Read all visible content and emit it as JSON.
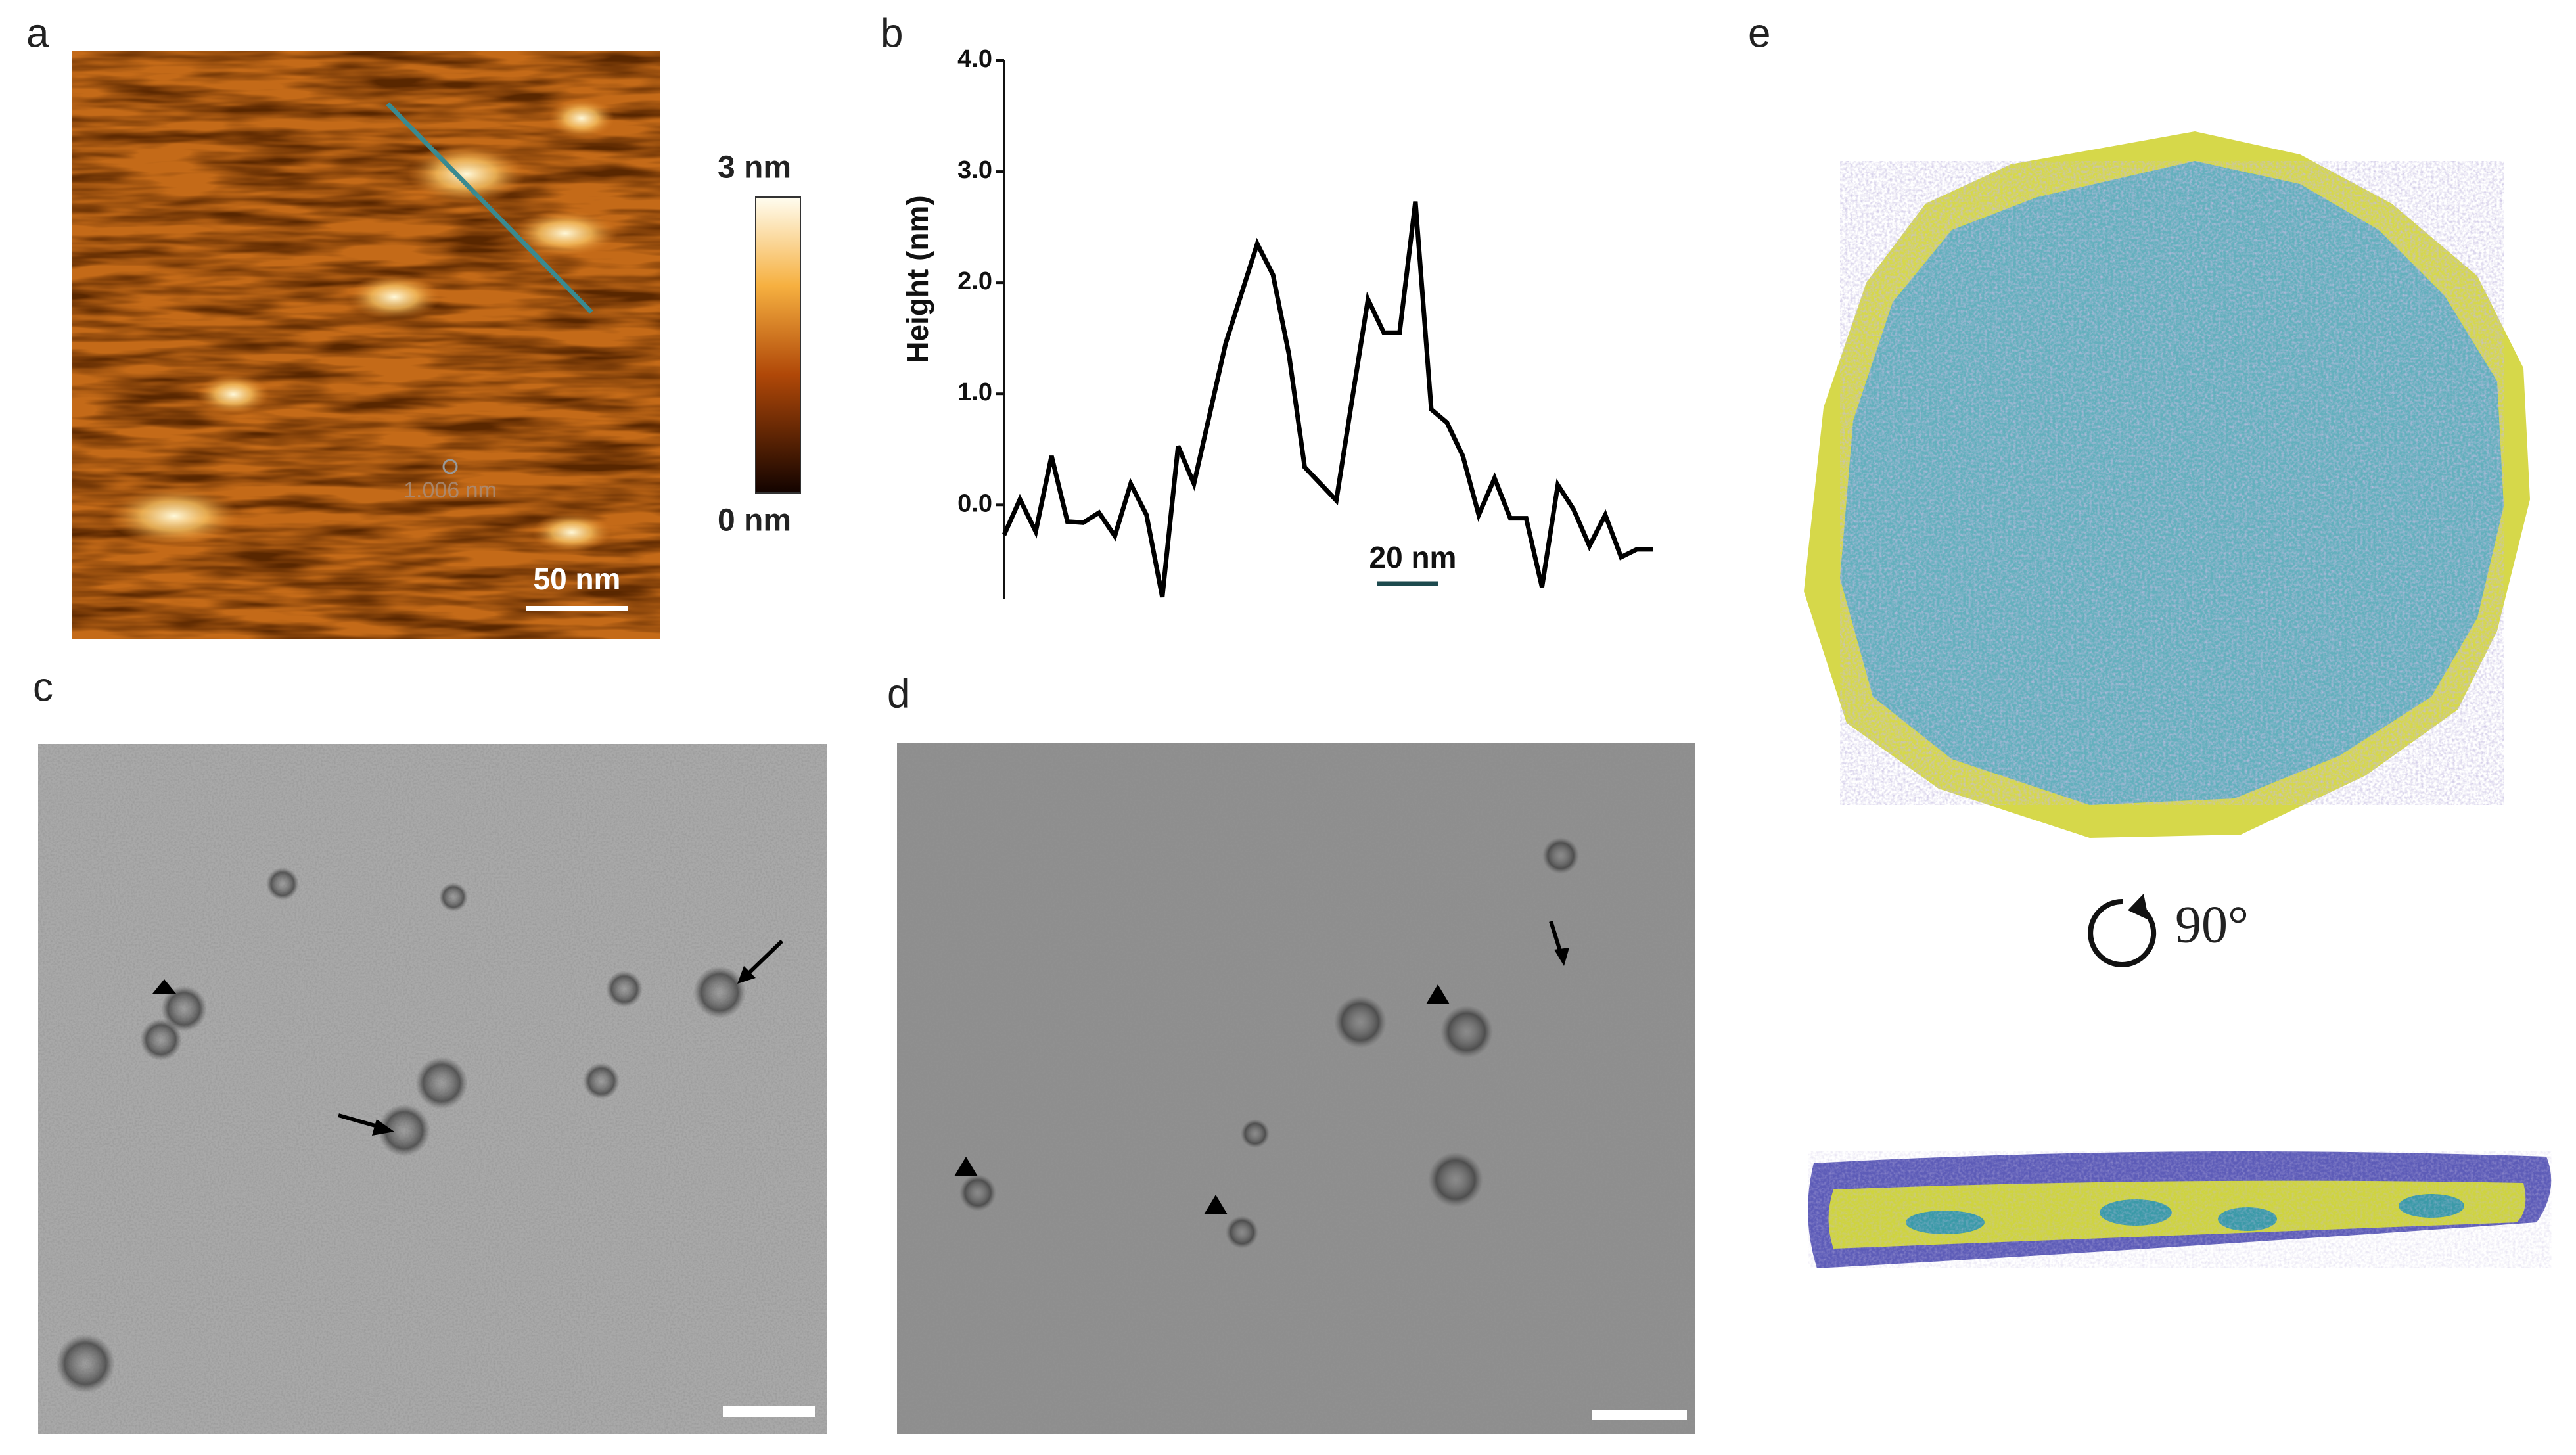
{
  "panels": {
    "a": {
      "label": "a",
      "colorbar_max": "3 nm",
      "colorbar_min": "0 nm",
      "scale_bar": "50 nm",
      "cursor_label": "1.006 nm"
    },
    "c": {
      "label": "c"
    },
    "d": {
      "label": "d"
    },
    "e": {
      "label": "e",
      "rotation": "90°"
    }
  },
  "chart_data": {
    "type": "line",
    "panel_label": "b",
    "y_label": "Height (nm)",
    "scale_bar": "20 nm",
    "color": "#000000",
    "values": [
      -0.27,
      0.05,
      -0.24,
      0.44,
      -0.15,
      -0.16,
      -0.07,
      -0.28,
      0.19,
      -0.09,
      -0.83,
      0.53,
      0.19,
      0.82,
      1.45,
      1.9,
      2.35,
      2.07,
      1.36,
      0.34,
      0.19,
      0.04,
      0.95,
      1.85,
      1.55,
      1.55,
      2.73,
      0.86,
      0.74,
      0.44,
      -0.09,
      0.24,
      -0.12,
      -0.12,
      -0.74,
      0.18,
      -0.04,
      -0.37,
      -0.09,
      -0.47,
      -0.4,
      -0.4
    ],
    "ylim": [
      -0.85,
      4.0
    ],
    "yticks": [
      {
        "value": 0,
        "label": "0.0"
      },
      {
        "value": 1,
        "label": "1.0"
      },
      {
        "value": 2,
        "label": "2.0"
      },
      {
        "value": 3,
        "label": "3.0"
      },
      {
        "value": 4,
        "label": "4.0"
      }
    ]
  }
}
